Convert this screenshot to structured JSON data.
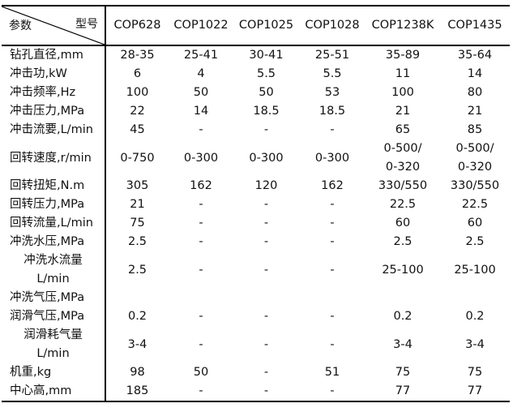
{
  "corner": {
    "param_label": "参数",
    "model_label": "型号"
  },
  "models": [
    "COP628",
    "COP1022",
    "COP1025",
    "COP1028",
    "COP1238K",
    "COP1435"
  ],
  "rows": [
    {
      "param": [
        "钻孔直径,mm"
      ],
      "values": [
        [
          "28-35"
        ],
        [
          "25-41"
        ],
        [
          "30-41"
        ],
        [
          "25-51"
        ],
        [
          "35-89"
        ],
        [
          "35-64"
        ]
      ]
    },
    {
      "param": [
        "冲击功,kW"
      ],
      "values": [
        [
          "6"
        ],
        [
          "4"
        ],
        [
          "5.5"
        ],
        [
          "5.5"
        ],
        [
          "11"
        ],
        [
          "14"
        ]
      ]
    },
    {
      "param": [
        "冲击频率,Hz"
      ],
      "values": [
        [
          "100"
        ],
        [
          "50"
        ],
        [
          "50"
        ],
        [
          "53"
        ],
        [
          "100"
        ],
        [
          "80"
        ]
      ]
    },
    {
      "param": [
        "冲击压力,MPa"
      ],
      "values": [
        [
          "22"
        ],
        [
          "14"
        ],
        [
          "18.5"
        ],
        [
          "18.5"
        ],
        [
          "21"
        ],
        [
          "21"
        ]
      ]
    },
    {
      "param": [
        "冲击流要,L/min"
      ],
      "values": [
        [
          "45"
        ],
        [
          "-"
        ],
        [
          "-"
        ],
        [
          "-"
        ],
        [
          "65"
        ],
        [
          "85"
        ]
      ]
    },
    {
      "param": [
        "回转速度,r/min"
      ],
      "values": [
        [
          "0-750"
        ],
        [
          "0-300"
        ],
        [
          "0-300"
        ],
        [
          "0-300"
        ],
        [
          "0-500/",
          "0-320"
        ],
        [
          "0-500/",
          "0-320"
        ]
      ]
    },
    {
      "param": [
        "回转扭矩,N.m"
      ],
      "values": [
        [
          "305"
        ],
        [
          "162"
        ],
        [
          "120"
        ],
        [
          "162"
        ],
        [
          "330/550"
        ],
        [
          "330/550"
        ]
      ]
    },
    {
      "param": [
        "回转压力,MPa"
      ],
      "values": [
        [
          "21"
        ],
        [
          "-"
        ],
        [
          "-"
        ],
        [
          "-"
        ],
        [
          "22.5"
        ],
        [
          "22.5"
        ]
      ]
    },
    {
      "param": [
        "回转流量,L/min"
      ],
      "values": [
        [
          "75"
        ],
        [
          "-"
        ],
        [
          "-"
        ],
        [
          "-"
        ],
        [
          "60"
        ],
        [
          "60"
        ]
      ]
    },
    {
      "param": [
        "冲洗水压,MPa"
      ],
      "values": [
        [
          "2.5"
        ],
        [
          "-"
        ],
        [
          "-"
        ],
        [
          "-"
        ],
        [
          "2.5"
        ],
        [
          "2.5"
        ]
      ]
    },
    {
      "param": [
        "冲洗水流量",
        "L/min"
      ],
      "values": [
        [
          "2.5"
        ],
        [
          "-"
        ],
        [
          "-"
        ],
        [
          "-"
        ],
        [
          "25-100"
        ],
        [
          "25-100"
        ]
      ]
    },
    {
      "param": [
        "冲洗气压,MPa"
      ],
      "values": [
        [
          ""
        ],
        [
          ""
        ],
        [
          ""
        ],
        [
          ""
        ],
        [
          ""
        ],
        [
          ""
        ]
      ]
    },
    {
      "param": [
        "润滑气压,MPa"
      ],
      "values": [
        [
          "0.2"
        ],
        [
          "-"
        ],
        [
          "-"
        ],
        [
          "-"
        ],
        [
          "0.2"
        ],
        [
          "0.2"
        ]
      ]
    },
    {
      "param": [
        "润滑耗气量",
        "L/min"
      ],
      "values": [
        [
          "3-4"
        ],
        [
          "-"
        ],
        [
          "-"
        ],
        [
          "-"
        ],
        [
          "3-4"
        ],
        [
          "3-4"
        ]
      ]
    },
    {
      "param": [
        "机重,kg"
      ],
      "values": [
        [
          "98"
        ],
        [
          "50"
        ],
        [
          "-"
        ],
        [
          "51"
        ],
        [
          "75"
        ],
        [
          "75"
        ]
      ]
    },
    {
      "param": [
        "中心高,mm"
      ],
      "values": [
        [
          "185"
        ],
        [
          "-"
        ],
        [
          "-"
        ],
        [
          "-"
        ],
        [
          "77"
        ],
        [
          "77"
        ]
      ]
    }
  ]
}
